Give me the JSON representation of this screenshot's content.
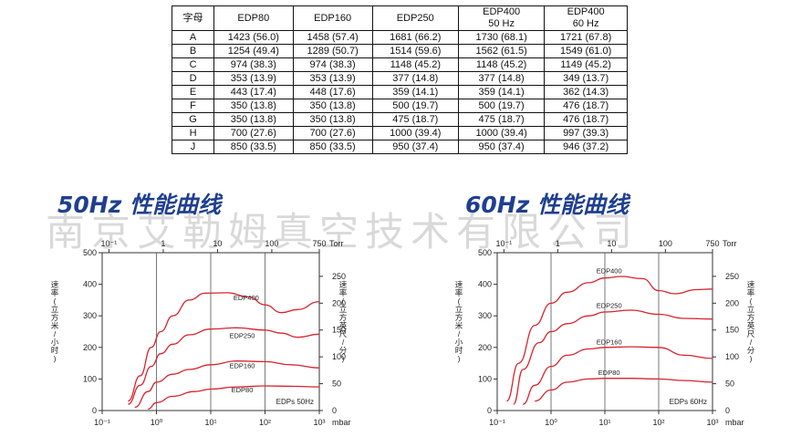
{
  "table": {
    "headers": [
      "字母",
      "EDP80",
      "EDP160",
      "EDP250",
      "EDP400\n50 Hz",
      "EDP400\n60 Hz"
    ],
    "rows": [
      [
        "A",
        "1423 (56.0)",
        "1458 (57.4)",
        "1681 (66.2)",
        "1730 (68.1)",
        "1721 (67.8)"
      ],
      [
        "B",
        "1254 (49.4)",
        "1289 (50.7)",
        "1514 (59.6)",
        "1562 (61.5)",
        "1549 (61.0)"
      ],
      [
        "C",
        "974 (38.3)",
        "974 (38.3)",
        "1148 (45.2)",
        "1148 (45.2)",
        "1149 (45.2)"
      ],
      [
        "D",
        "353 (13.9)",
        "353 (13.9)",
        "377 (14.8)",
        "377 (14.8)",
        "349 (13.7)"
      ],
      [
        "E",
        "443 (17.4)",
        "448 (17.6)",
        "359 (14.1)",
        "359 (14.1)",
        "362 (14.3)"
      ],
      [
        "F",
        "350 (13.8)",
        "350 (13.8)",
        "500 (19.7)",
        "500 (19.7)",
        "476 (18.7)"
      ],
      [
        "G",
        "350 (13.8)",
        "350 (13.8)",
        "475 (18.7)",
        "475 (18.7)",
        "476 (18.7)"
      ],
      [
        "H",
        "700 (27.6)",
        "700 (27.6)",
        "1000 (39.4)",
        "1000 (39.4)",
        "997 (39.3)"
      ],
      [
        "J",
        "850 (33.5)",
        "850 (33.5)",
        "950 (37.4)",
        "950 (37.4)",
        "946 (37.2)"
      ]
    ]
  },
  "watermark": "南京艾勒姆真空技术有限公司",
  "chart_data": [
    {
      "type": "line",
      "title": "50Hz 性能曲线",
      "ylabel_left": "速率(立方米/小时)",
      "ylabel_right": "速率(立方英尺/分)",
      "x_scale": "log",
      "xlim": [
        0.1,
        1000
      ],
      "ylim": [
        0,
        500
      ],
      "y_right_lim": [
        0,
        294
      ],
      "x_ticks_bottom": [
        "10⁻¹",
        "10⁰",
        "10¹",
        "10²",
        "10³"
      ],
      "x_unit_bottom": "mbar",
      "x_ticks_top": [
        "10⁻¹",
        "1",
        "10",
        "100",
        "750"
      ],
      "x_unit_top": "Torr",
      "y_ticks_left": [
        "0",
        "100",
        "200",
        "300",
        "400",
        "500"
      ],
      "y_ticks_right": [
        "0",
        "50",
        "100",
        "150",
        "200",
        "250"
      ],
      "legend_text": "EDPs 50Hz",
      "color": "#d9232e",
      "series": [
        {
          "name": "EDP400",
          "x": [
            0.3,
            0.5,
            0.8,
            1.2,
            2,
            4,
            8,
            20,
            50,
            100,
            200,
            400,
            1000
          ],
          "values": [
            30,
            110,
            200,
            250,
            300,
            350,
            372,
            373,
            360,
            335,
            310,
            320,
            345
          ]
        },
        {
          "name": "EDP250",
          "x": [
            0.3,
            0.5,
            0.8,
            1.2,
            2,
            4,
            10,
            30,
            100,
            200,
            400,
            1000
          ],
          "values": [
            20,
            80,
            140,
            180,
            210,
            240,
            258,
            262,
            255,
            245,
            232,
            242
          ]
        },
        {
          "name": "EDP160",
          "x": [
            0.4,
            0.7,
            1,
            2,
            4,
            10,
            30,
            100,
            300,
            1000
          ],
          "values": [
            10,
            60,
            90,
            115,
            130,
            145,
            157,
            155,
            145,
            135
          ]
        },
        {
          "name": "EDP80",
          "x": [
            0.7,
            1,
            2,
            5,
            10,
            30,
            100,
            300,
            1000
          ],
          "values": [
            5,
            25,
            45,
            60,
            68,
            75,
            78,
            77,
            75
          ]
        }
      ]
    },
    {
      "type": "line",
      "title": "60Hz 性能曲线",
      "ylabel_left": "速率(立方米/小时)",
      "ylabel_right": "速率(立方英尺/分)",
      "x_scale": "log",
      "xlim": [
        0.1,
        1000
      ],
      "ylim": [
        0,
        500
      ],
      "y_right_lim": [
        0,
        294
      ],
      "x_ticks_bottom": [
        "10⁻¹",
        "10⁰",
        "10¹",
        "10²",
        "10³"
      ],
      "x_unit_bottom": "mbar",
      "x_ticks_top": [
        "10⁻¹",
        "1",
        "10",
        "100",
        "750"
      ],
      "x_unit_top": "Torr",
      "y_ticks_left": [
        "0",
        "100",
        "200",
        "300",
        "400",
        "500"
      ],
      "y_ticks_right": [
        "0",
        "50",
        "100",
        "150",
        "200",
        "250"
      ],
      "legend_text": "EDPs 60Hz",
      "color": "#d9232e",
      "series": [
        {
          "name": "EDP400",
          "x": [
            0.15,
            0.25,
            0.5,
            1,
            2,
            5,
            10,
            20,
            50,
            100,
            200,
            500,
            1000
          ],
          "values": [
            30,
            150,
            270,
            340,
            375,
            405,
            420,
            425,
            418,
            380,
            370,
            383,
            385
          ]
        },
        {
          "name": "EDP250",
          "x": [
            0.2,
            0.3,
            0.6,
            1,
            2,
            5,
            10,
            30,
            100,
            300,
            1000
          ],
          "values": [
            20,
            130,
            215,
            250,
            275,
            300,
            312,
            318,
            305,
            292,
            290
          ]
        },
        {
          "name": "EDP160",
          "x": [
            0.3,
            0.5,
            1,
            2,
            5,
            10,
            30,
            100,
            300,
            1000
          ],
          "values": [
            20,
            80,
            140,
            175,
            195,
            200,
            202,
            200,
            175,
            165
          ]
        },
        {
          "name": "EDP80",
          "x": [
            0.5,
            1,
            2,
            5,
            10,
            30,
            100,
            300,
            1000
          ],
          "values": [
            30,
            65,
            90,
            100,
            102,
            102,
            100,
            95,
            90
          ]
        }
      ]
    }
  ]
}
